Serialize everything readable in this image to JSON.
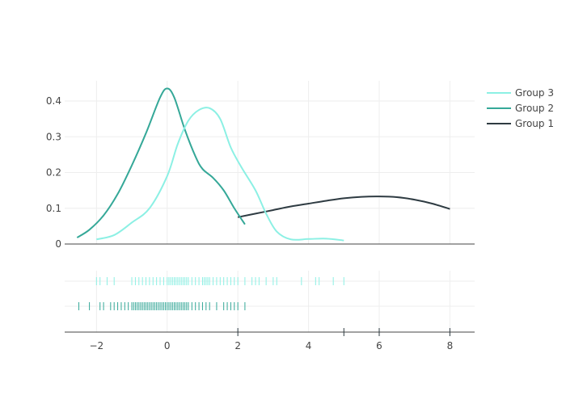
{
  "chart_data": {
    "type": "line",
    "subtype": "distplot",
    "title": "",
    "xlabel": "",
    "ylabel": "",
    "xlim": [
      -2.9,
      8.7
    ],
    "ylim": [
      -0.01,
      0.46
    ],
    "x_ticks": [
      -2,
      0,
      2,
      4,
      6,
      8
    ],
    "y_ticks": [
      0,
      0.1,
      0.2,
      0.3,
      0.4
    ],
    "grid": true,
    "legend": "right",
    "series": [
      {
        "name": "Group 3",
        "color": "#8cf0e4",
        "curve_x": [
          -2.0,
          -1.5,
          -1.0,
          -0.5,
          0.0,
          0.3,
          0.6,
          0.9,
          1.2,
          1.5,
          1.8,
          2.1,
          2.5,
          2.8,
          3.1,
          3.5,
          4.0,
          4.5,
          5.0
        ],
        "curve_y": [
          0.013,
          0.025,
          0.06,
          0.1,
          0.19,
          0.28,
          0.345,
          0.375,
          0.38,
          0.35,
          0.27,
          0.215,
          0.15,
          0.085,
          0.035,
          0.013,
          0.014,
          0.015,
          0.01
        ],
        "rug": [
          -2.0,
          -1.9,
          -1.7,
          -1.5,
          -1.0,
          -0.9,
          -0.8,
          -0.7,
          -0.6,
          -0.5,
          -0.4,
          -0.3,
          -0.2,
          -0.1,
          0.0,
          0.05,
          0.1,
          0.15,
          0.2,
          0.25,
          0.3,
          0.35,
          0.4,
          0.45,
          0.5,
          0.55,
          0.6,
          0.7,
          0.8,
          0.9,
          1.0,
          1.05,
          1.1,
          1.15,
          1.2,
          1.3,
          1.4,
          1.5,
          1.6,
          1.7,
          1.8,
          1.9,
          2.0,
          2.2,
          2.4,
          2.5,
          2.6,
          2.8,
          3.0,
          3.1,
          3.8,
          4.2,
          4.3,
          4.7,
          5.0
        ]
      },
      {
        "name": "Group 2",
        "color": "#35a898",
        "curve_x": [
          -2.55,
          -2.2,
          -1.8,
          -1.4,
          -1.0,
          -0.6,
          -0.2,
          0.0,
          0.2,
          0.5,
          0.8,
          1.0,
          1.3,
          1.6,
          1.9,
          2.2
        ],
        "curve_y": [
          0.018,
          0.04,
          0.08,
          0.14,
          0.22,
          0.31,
          0.41,
          0.435,
          0.41,
          0.32,
          0.245,
          0.21,
          0.185,
          0.15,
          0.1,
          0.055
        ],
        "rug": [
          -2.5,
          -2.2,
          -1.9,
          -1.8,
          -1.6,
          -1.5,
          -1.4,
          -1.3,
          -1.2,
          -1.1,
          -1.0,
          -0.95,
          -0.9,
          -0.85,
          -0.8,
          -0.75,
          -0.7,
          -0.65,
          -0.6,
          -0.55,
          -0.5,
          -0.45,
          -0.4,
          -0.35,
          -0.3,
          -0.25,
          -0.2,
          -0.15,
          -0.1,
          -0.05,
          0.0,
          0.05,
          0.1,
          0.15,
          0.2,
          0.25,
          0.3,
          0.35,
          0.4,
          0.45,
          0.5,
          0.55,
          0.6,
          0.7,
          0.8,
          0.9,
          1.0,
          1.1,
          1.2,
          1.4,
          1.6,
          1.7,
          1.8,
          1.9,
          2.0,
          2.2
        ]
      },
      {
        "name": "Group 1",
        "color": "#2e3b42",
        "curve_x": [
          2.0,
          2.5,
          3.0,
          3.5,
          4.0,
          4.5,
          5.0,
          5.5,
          6.0,
          6.5,
          7.0,
          7.5,
          8.0
        ],
        "curve_y": [
          0.075,
          0.085,
          0.095,
          0.105,
          0.113,
          0.121,
          0.128,
          0.132,
          0.133,
          0.131,
          0.124,
          0.113,
          0.098
        ],
        "rug": [
          2.0,
          5.0,
          6.0,
          8.0
        ]
      }
    ]
  }
}
